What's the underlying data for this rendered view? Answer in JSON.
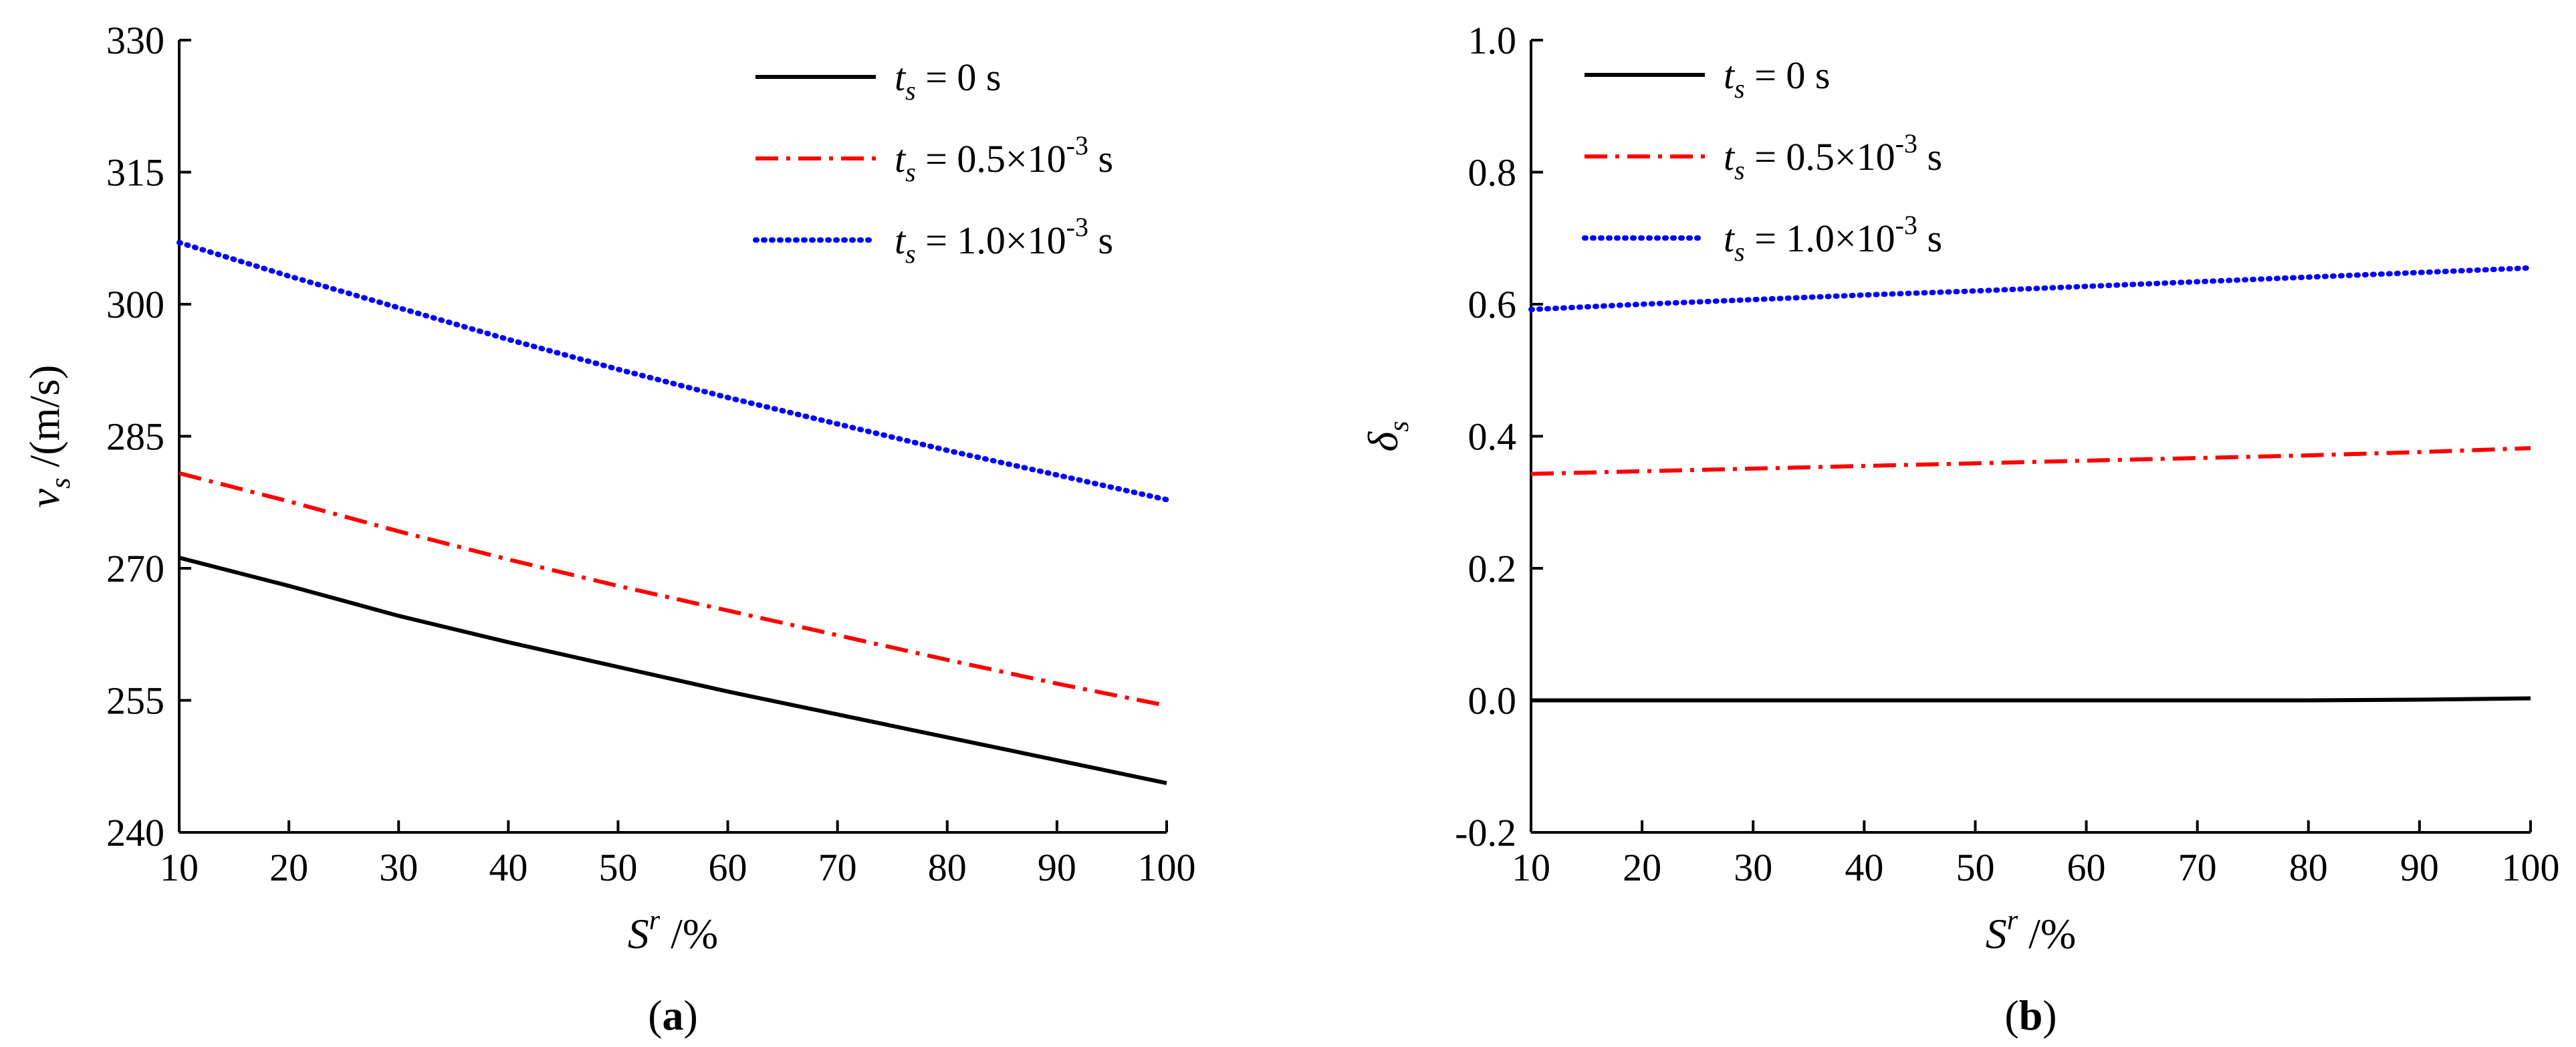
{
  "chart_data": [
    {
      "panel": "(a)",
      "panel_letter": "a",
      "type": "line",
      "xlabel": "S",
      "xlabel_sup": "r",
      "xlabel_unit": " /%",
      "ylabel": "v",
      "ylabel_sub": "s",
      "ylabel_unit": " /(m/s)",
      "xlim": [
        10,
        100
      ],
      "ylim": [
        240,
        330
      ],
      "xticks": [
        10,
        20,
        30,
        40,
        50,
        60,
        70,
        80,
        90,
        100
      ],
      "yticks": [
        240,
        255,
        270,
        285,
        300,
        315,
        330
      ],
      "ytick_labels": [
        "240",
        "255",
        "270",
        "285",
        "300",
        "315",
        "330"
      ],
      "x": [
        10,
        20,
        30,
        40,
        50,
        60,
        70,
        80,
        90,
        100
      ],
      "series": [
        {
          "name": "t_s = 0 s",
          "label_var": "t",
          "label_sub": "s",
          "label_value": " = 0 s",
          "label_sup": "",
          "label_tail": "",
          "color": "#000000",
          "style": "solid",
          "values": [
            271.2,
            268.0,
            264.6,
            261.6,
            258.8,
            256.0,
            253.4,
            250.8,
            248.2,
            245.6
          ]
        },
        {
          "name": "t_s = 0.5×10^-3 s",
          "label_var": "t",
          "label_sub": "s",
          "label_value": " = 0.5×10",
          "label_sup": "-3",
          "label_tail": " s",
          "color": "#ff0000",
          "style": "dashdot",
          "values": [
            280.8,
            277.6,
            274.2,
            271.0,
            268.0,
            265.2,
            262.4,
            259.6,
            256.9,
            254.4
          ]
        },
        {
          "name": "t_s = 1.0×10^-3 s",
          "label_var": "t",
          "label_sub": "s",
          "label_value": " = 1.0×10",
          "label_sup": "-3",
          "label_tail": " s",
          "color": "#0000ff",
          "style": "dotted",
          "values": [
            307.0,
            303.2,
            299.6,
            296.0,
            292.6,
            289.4,
            286.4,
            283.4,
            280.6,
            277.8
          ]
        }
      ],
      "legend_position": "top-right"
    },
    {
      "panel": "(b)",
      "panel_letter": "b",
      "type": "line",
      "xlabel": "S",
      "xlabel_sup": "r",
      "xlabel_unit": " /%",
      "ylabel": "δ",
      "ylabel_sub": "s",
      "ylabel_unit": "",
      "xlim": [
        10,
        100
      ],
      "ylim": [
        -0.2,
        1.0
      ],
      "xticks": [
        10,
        20,
        30,
        40,
        50,
        60,
        70,
        80,
        90,
        100
      ],
      "yticks": [
        -0.2,
        0.0,
        0.2,
        0.4,
        0.6,
        0.8,
        1.0
      ],
      "ytick_labels": [
        "-0.2",
        "0.0",
        "0.2",
        "0.4",
        "0.6",
        "0.8",
        "1.0"
      ],
      "x": [
        10,
        20,
        30,
        40,
        50,
        60,
        70,
        80,
        90,
        100
      ],
      "series": [
        {
          "name": "t_s = 0 s",
          "label_var": "t",
          "label_sub": "s",
          "label_value": " = 0 s",
          "label_sup": "",
          "label_tail": "",
          "color": "#000000",
          "style": "solid",
          "values": [
            0.0,
            0.0,
            0.0,
            0.0,
            0.0,
            0.0,
            0.0,
            0.0,
            0.001,
            0.003
          ]
        },
        {
          "name": "t_s = 0.5×10^-3 s",
          "label_var": "t",
          "label_sub": "s",
          "label_value": " = 0.5×10",
          "label_sup": "-3",
          "label_tail": " s",
          "color": "#ff0000",
          "style": "dashdot",
          "values": [
            0.343,
            0.347,
            0.351,
            0.355,
            0.359,
            0.363,
            0.367,
            0.371,
            0.376,
            0.382
          ]
        },
        {
          "name": "t_s = 1.0×10^-3 s",
          "label_var": "t",
          "label_sub": "s",
          "label_value": " = 1.0×10",
          "label_sup": "-3",
          "label_tail": " s",
          "color": "#0000ff",
          "style": "dotted",
          "values": [
            0.592,
            0.6,
            0.607,
            0.614,
            0.62,
            0.627,
            0.634,
            0.641,
            0.648,
            0.655
          ]
        }
      ],
      "legend_position": "top-left"
    }
  ]
}
